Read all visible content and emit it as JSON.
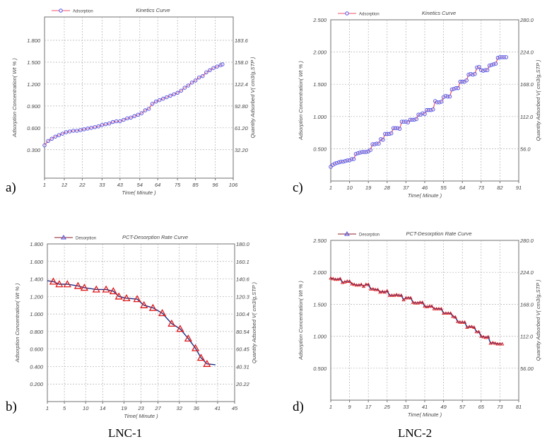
{
  "panel_labels": [
    "a)",
    "b)",
    "c)",
    "d)"
  ],
  "captions": [
    "LNC-1",
    "LNC-2"
  ],
  "chart_data": [
    {
      "id": "a",
      "type": "line",
      "title": "Kinetics Curve",
      "legend": "Adsorption",
      "legend_position": "top-left",
      "marker": "circle",
      "xlabel": "Time( Minute )",
      "ylabel": "Adsorption Concentration( Wt % )",
      "y2label": "Quantity Adsorbed V( cm3/g,STP )",
      "xlim": [
        1,
        106
      ],
      "ylim": [
        -0.09,
        2.12
      ],
      "grid": true,
      "xticks": [
        1,
        12,
        22,
        33,
        43,
        54,
        64,
        75,
        85,
        96,
        106
      ],
      "yticks": [
        0.3,
        0.6,
        0.9,
        1.2,
        1.5,
        1.8
      ],
      "ytick_labels": [
        "0.300",
        "0.600",
        "0.900",
        "1.200",
        "1.500",
        "1.800"
      ],
      "y2tick_labels": [
        "32.20",
        "61.20",
        "92.80",
        "122.4",
        "158.0",
        "183.6"
      ],
      "x": [
        1,
        3,
        5,
        7,
        9,
        11,
        13,
        15,
        17,
        19,
        21,
        23,
        25,
        27,
        29,
        31,
        33,
        35,
        37,
        39,
        41,
        43,
        45,
        47,
        49,
        51,
        53,
        55,
        57,
        59,
        61,
        63,
        65,
        67,
        69,
        71,
        73,
        75,
        77,
        79,
        81,
        83,
        85,
        87,
        89,
        91,
        93,
        95,
        97,
        99,
        100
      ],
      "y": [
        0.36,
        0.42,
        0.45,
        0.48,
        0.5,
        0.52,
        0.54,
        0.55,
        0.56,
        0.56,
        0.57,
        0.58,
        0.59,
        0.6,
        0.61,
        0.62,
        0.64,
        0.65,
        0.66,
        0.68,
        0.69,
        0.69,
        0.71,
        0.73,
        0.74,
        0.76,
        0.78,
        0.8,
        0.84,
        0.86,
        0.93,
        0.96,
        0.98,
        1.0,
        1.02,
        1.04,
        1.06,
        1.08,
        1.11,
        1.15,
        1.18,
        1.22,
        1.25,
        1.29,
        1.31,
        1.36,
        1.39,
        1.42,
        1.44,
        1.46,
        1.47
      ]
    },
    {
      "id": "b",
      "type": "line",
      "title": "PCT-Desorption Rate Curve",
      "legend": "Desorption",
      "legend_position": "top-left",
      "marker": "triangle",
      "xlabel": "Time( Minute )",
      "ylabel": "Adsorption Concentration( Wt % )",
      "y2label": "Quantity Adsorbed V( cm3/g,STP )",
      "xlim": [
        1,
        45
      ],
      "ylim": [
        0,
        1.8
      ],
      "grid": true,
      "xticks": [
        1,
        5,
        10,
        14,
        19,
        23,
        27,
        32,
        36,
        41,
        45
      ],
      "yticks": [
        0.2,
        0.4,
        0.6,
        0.8,
        1.0,
        1.2,
        1.4,
        1.6,
        1.8
      ],
      "ytick_labels": [
        "0.200",
        "0.400",
        "0.600",
        "0.800",
        "1.000",
        "1.200",
        "1.400",
        "1.600",
        "1.800"
      ],
      "y2tick_labels": [
        "20.22",
        "40.31",
        "60.45",
        "80.54",
        "100.4",
        "120.3",
        "140.6",
        "160.1",
        "180.0"
      ],
      "line_start": [
        1,
        1.38
      ],
      "line_end": [
        40.5,
        0.42
      ],
      "x": [
        2.4,
        3.8,
        5.7,
        8.2,
        9.7,
        12.5,
        14.8,
        16.5,
        17.8,
        19.6,
        22.1,
        23.7,
        25.8,
        28,
        30.2,
        32.2,
        34.1,
        35.8,
        37.1,
        38.5
      ],
      "y": [
        1.37,
        1.34,
        1.34,
        1.32,
        1.3,
        1.28,
        1.28,
        1.26,
        1.2,
        1.18,
        1.17,
        1.1,
        1.07,
        1.01,
        0.89,
        0.83,
        0.72,
        0.61,
        0.5,
        0.43
      ]
    },
    {
      "id": "c",
      "type": "line",
      "title": "Kinetics Curve",
      "legend": "Adsorption",
      "legend_position": "top-left",
      "marker": "circle",
      "xlabel": "Time( Minute )",
      "ylabel": "Adsorption Concentration( Wt % )",
      "y2label": "Quantity Adsorbed V( cm3/g,STP )",
      "xlim": [
        1,
        91
      ],
      "ylim": [
        0,
        2.5
      ],
      "grid": true,
      "xticks": [
        1,
        10,
        19,
        28,
        37,
        46,
        55,
        64,
        73,
        82,
        91
      ],
      "yticks": [
        0.5,
        1.0,
        1.5,
        2.0,
        2.5
      ],
      "ytick_labels": [
        "0.500",
        "1.000",
        "1.500",
        "2.000",
        "2.500"
      ],
      "y2tick_labels": [
        "56.0",
        "112.0",
        "168.0",
        "224.0",
        "280.0"
      ],
      "x_start": 1,
      "y": [
        0.22,
        0.25,
        0.27,
        0.28,
        0.29,
        0.3,
        0.3,
        0.31,
        0.32,
        0.32,
        0.34,
        0.34,
        0.42,
        0.43,
        0.44,
        0.45,
        0.45,
        0.45,
        0.46,
        0.48,
        0.57,
        0.57,
        0.58,
        0.58,
        0.65,
        0.64,
        0.73,
        0.73,
        0.73,
        0.74,
        0.82,
        0.82,
        0.82,
        0.81,
        0.92,
        0.92,
        0.92,
        0.91,
        0.95,
        0.95,
        0.95,
        0.96,
        1.03,
        1.03,
        1.05,
        1.04,
        1.1,
        1.1,
        1.1,
        1.11,
        1.24,
        1.22,
        1.22,
        1.23,
        1.3,
        1.32,
        1.31,
        1.31,
        1.42,
        1.43,
        1.44,
        1.44,
        1.54,
        1.54,
        1.54,
        1.56,
        1.65,
        1.66,
        1.65,
        1.66,
        1.76,
        1.77,
        1.72,
        1.71,
        1.72,
        1.72,
        1.79,
        1.8,
        1.81,
        1.82,
        1.91,
        1.92,
        1.92,
        1.92,
        1.92
      ]
    },
    {
      "id": "d",
      "type": "line",
      "title": "PCT-Desorption Rate Curve",
      "legend": "Desorption",
      "legend_position": "top-left",
      "marker": "triangle",
      "xlabel": "Time( Minute )",
      "ylabel": "Adsorption Concentration( Wt % )",
      "y2label": "Quantity Adsorbed V( cm3/g,STP )",
      "xlim": [
        1,
        81
      ],
      "ylim": [
        0,
        2.5
      ],
      "grid": true,
      "xticks": [
        1,
        9,
        17,
        25,
        33,
        41,
        49,
        57,
        65,
        73,
        81
      ],
      "yticks": [
        0.5,
        1.0,
        1.5,
        2.0,
        2.5
      ],
      "ytick_labels": [
        "0.500",
        "1.000",
        "1.500",
        "2.000",
        "2.500"
      ],
      "y2tick_labels": [
        "56.00",
        "112.0",
        "168.0",
        "224.0",
        "280.0"
      ],
      "x_start": 1,
      "y": [
        1.91,
        1.9,
        1.89,
        1.89,
        1.9,
        1.84,
        1.85,
        1.86,
        1.86,
        1.82,
        1.81,
        1.8,
        1.8,
        1.81,
        1.78,
        1.81,
        1.81,
        1.74,
        1.74,
        1.73,
        1.73,
        1.69,
        1.7,
        1.69,
        1.71,
        1.64,
        1.64,
        1.64,
        1.65,
        1.64,
        1.64,
        1.57,
        1.6,
        1.6,
        1.6,
        1.53,
        1.52,
        1.52,
        1.53,
        1.53,
        1.47,
        1.46,
        1.47,
        1.47,
        1.43,
        1.43,
        1.43,
        1.43,
        1.36,
        1.36,
        1.36,
        1.36,
        1.31,
        1.3,
        1.23,
        1.22,
        1.22,
        1.22,
        1.14,
        1.15,
        1.15,
        1.14,
        1.07,
        1.07,
        1.0,
        0.99,
        0.98,
        0.99,
        0.89,
        0.9,
        0.89,
        0.88,
        0.88,
        0.88
      ]
    }
  ],
  "colors": {
    "line_red": "#f0506a",
    "marker_blue": "#4a4ae0",
    "line_navy": "#1f2f86",
    "marker_red": "#e01818",
    "grid": "#b0b0b0",
    "axis": "#707070",
    "text": "#444444"
  }
}
